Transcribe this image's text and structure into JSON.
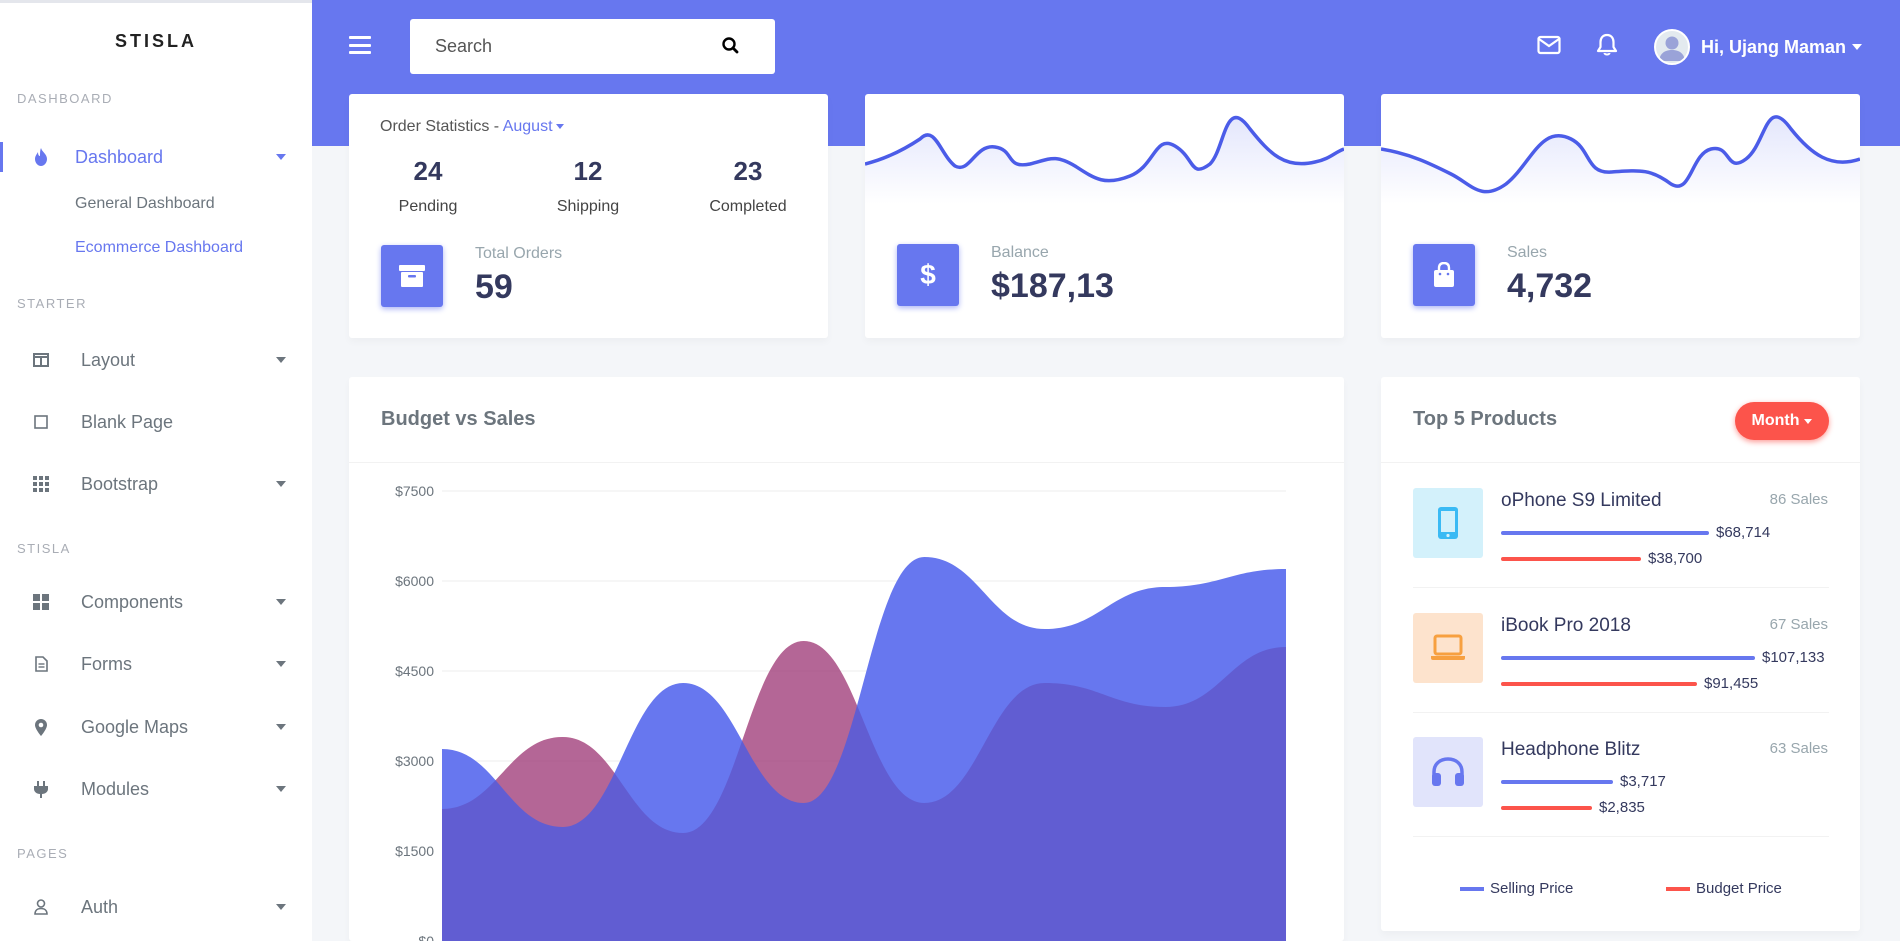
{
  "brand": "STISLA",
  "colors": {
    "primary": "#6777ef",
    "danger": "#fc544b"
  },
  "sidebar": {
    "headers": [
      "Dashboard",
      "Starter",
      "Stisla",
      "Pages"
    ],
    "dashboard_label": "Dashboard",
    "dashboard_sub": [
      "General Dashboard",
      "Ecommerce Dashboard"
    ],
    "starter": [
      "Layout",
      "Blank Page",
      "Bootstrap"
    ],
    "stisla": [
      "Components",
      "Forms",
      "Google Maps",
      "Modules"
    ],
    "pages": [
      "Auth"
    ]
  },
  "navbar": {
    "search_placeholder": "Search",
    "user_greeting": "Hi, Ujang Maman"
  },
  "order_stats": {
    "title": "Order Statistics - ",
    "month": "August",
    "items": [
      {
        "value": "24",
        "label": "Pending"
      },
      {
        "value": "12",
        "label": "Shipping"
      },
      {
        "value": "23",
        "label": "Completed"
      }
    ],
    "total_label": "Total Orders",
    "total_value": "59"
  },
  "balance": {
    "label": "Balance",
    "value": "$187,13"
  },
  "sales": {
    "label": "Sales",
    "value": "4,732"
  },
  "budget_chart": {
    "title": "Budget vs Sales"
  },
  "chart_data": {
    "type": "area",
    "title": "Budget vs Sales",
    "ylim": [
      0,
      7500
    ],
    "y_ticks": [
      "$7500",
      "$6000",
      "$4500",
      "$3000",
      "$1500",
      "$0"
    ],
    "series": [
      {
        "name": "Sales",
        "color": "#6777ef",
        "values": [
          3200,
          1900,
          4300,
          2300,
          6400,
          5200,
          5900,
          6200
        ]
      },
      {
        "name": "Budget",
        "color": "#fc544b",
        "values": [
          2200,
          3400,
          1800,
          5000,
          2300,
          4300,
          3900,
          4900
        ]
      }
    ]
  },
  "top_products": {
    "title": "Top 5 Products",
    "filter_label": "Month",
    "items": [
      {
        "name": "oPhone S9 Limited",
        "sales": "86 Sales",
        "selling": "$68,714",
        "budget": "$38,700",
        "selling_pct": 0.82,
        "budget_pct": 0.55
      },
      {
        "name": "iBook Pro 2018",
        "sales": "67 Sales",
        "selling": "$107,133",
        "budget": "$91,455",
        "selling_pct": 1.0,
        "budget_pct": 0.77
      },
      {
        "name": "Headphone Blitz",
        "sales": "63 Sales",
        "selling": "$3,717",
        "budget": "$2,835",
        "selling_pct": 0.44,
        "budget_pct": 0.36
      }
    ],
    "legend": [
      "Selling Price",
      "Budget Price"
    ]
  }
}
